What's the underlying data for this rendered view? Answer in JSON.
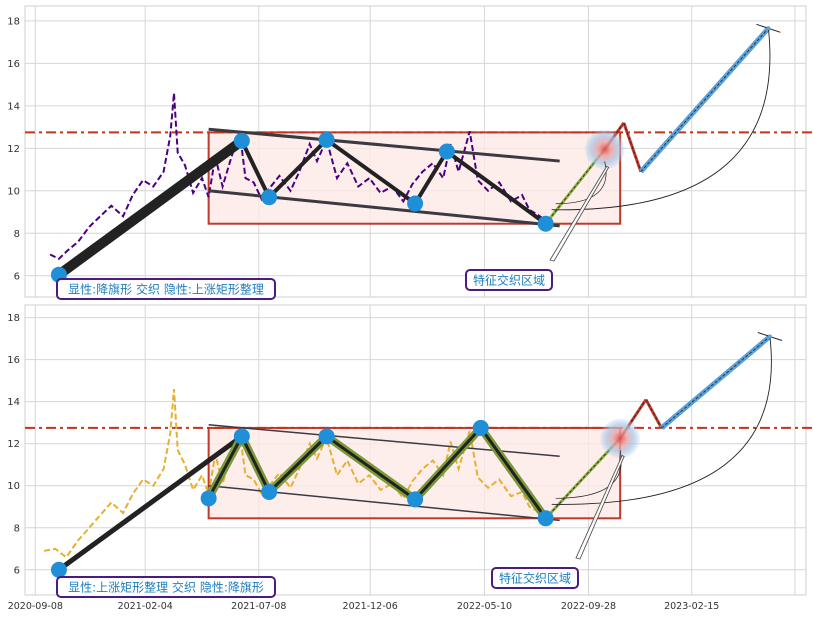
{
  "chart_data": [
    {
      "type": "line",
      "ylim": [
        5,
        18.7
      ],
      "yticks": [
        6,
        8,
        10,
        12,
        14,
        16,
        18
      ],
      "xlim": [
        "2020-08-25",
        "2023-07-20"
      ],
      "grid": true,
      "price_color": "#4b0082",
      "resistance_level": 12.75,
      "annotation": "显性:降旗形 交织 隐性:上涨矩形整理",
      "feature_label": "特征交织区域",
      "price_series": {
        "x": [
          "2020-09-28",
          "2020-10-10",
          "2020-10-22",
          "2020-11-05",
          "2020-11-20",
          "2020-12-05",
          "2020-12-20",
          "2021-01-05",
          "2021-01-18",
          "2021-02-01",
          "2021-02-15",
          "2021-03-01",
          "2021-03-10",
          "2021-03-15",
          "2021-03-20",
          "2021-03-30",
          "2021-04-10",
          "2021-04-22",
          "2021-05-01",
          "2021-05-10",
          "2021-05-20",
          "2021-06-01",
          "2021-06-12",
          "2021-06-20",
          "2021-07-01",
          "2021-07-12",
          "2021-07-22",
          "2021-08-05",
          "2021-08-20",
          "2021-09-01",
          "2021-09-15",
          "2021-09-25",
          "2021-10-08",
          "2021-10-22",
          "2021-11-05",
          "2021-11-20",
          "2021-12-05",
          "2021-12-20",
          "2022-01-05",
          "2022-01-20",
          "2022-02-01",
          "2022-02-15",
          "2022-03-01",
          "2022-03-15",
          "2022-03-25",
          "2022-04-05",
          "2022-04-20",
          "2022-05-01",
          "2022-05-15",
          "2022-05-30",
          "2022-06-15",
          "2022-06-30",
          "2022-07-10",
          "2022-07-20",
          "2022-08-01"
        ],
        "y": [
          7.0,
          6.8,
          7.2,
          7.6,
          8.3,
          8.8,
          9.3,
          8.8,
          9.8,
          10.5,
          10.2,
          10.9,
          12.6,
          14.6,
          11.8,
          11.2,
          9.9,
          10.6,
          9.7,
          11.6,
          10.2,
          11.6,
          12.8,
          10.6,
          10.4,
          9.6,
          10.1,
          10.7,
          10.0,
          10.9,
          12.2,
          11.4,
          12.4,
          10.6,
          11.3,
          10.2,
          10.6,
          9.9,
          10.2,
          9.5,
          10.3,
          10.9,
          11.3,
          10.6,
          12.2,
          10.9,
          12.8,
          10.5,
          10.0,
          10.4,
          9.5,
          9.8,
          9.1,
          8.9,
          8.6
        ]
      },
      "pivots": {
        "x": [
          "2020-10-10",
          "2021-06-15",
          "2021-07-22",
          "2021-10-08",
          "2022-02-05",
          "2022-03-20",
          "2022-08-01"
        ],
        "y": [
          6.05,
          12.35,
          9.7,
          12.4,
          9.4,
          11.85,
          8.45
        ]
      },
      "channel": {
        "upper": {
          "x": [
            "2021-05-01",
            "2022-08-20"
          ],
          "y": [
            12.9,
            11.4
          ]
        },
        "lower": {
          "x": [
            "2021-05-01",
            "2022-08-20"
          ],
          "y": [
            10.0,
            8.35
          ]
        }
      },
      "rectangle": {
        "x": [
          "2021-05-01",
          "2022-11-10"
        ],
        "y": [
          8.45,
          12.75
        ]
      },
      "projection": {
        "x": [
          "2022-08-01",
          "2022-10-20",
          "2022-11-15",
          "2022-12-08",
          "2023-05-30"
        ],
        "y": [
          8.45,
          11.95,
          13.2,
          10.9,
          17.65
        ]
      },
      "stop_mark": {
        "x": "2023-05-30",
        "y": 17.65
      }
    },
    {
      "type": "line",
      "ylim": [
        4.8,
        18.6
      ],
      "yticks": [
        6,
        8,
        10,
        12,
        14,
        16,
        18
      ],
      "xticks": [
        "2020-09-08",
        "2021-02-04",
        "2021-07-08",
        "2021-12-06",
        "2022-05-10",
        "2022-09-28",
        "2023-02-15"
      ],
      "xlim": [
        "2020-08-25",
        "2023-07-20"
      ],
      "grid": true,
      "price_color": "#e6b030",
      "resistance_level": 12.75,
      "annotation": "显性:上涨矩形整理 交织 隐性:降旗形",
      "feature_label": "特征交织区域",
      "price_series": {
        "x": [
          "2020-09-20",
          "2020-10-05",
          "2020-10-20",
          "2020-11-05",
          "2020-11-20",
          "2020-12-05",
          "2020-12-20",
          "2021-01-05",
          "2021-01-18",
          "2021-02-01",
          "2021-02-15",
          "2021-03-01",
          "2021-03-10",
          "2021-03-15",
          "2021-03-20",
          "2021-03-30",
          "2021-04-10",
          "2021-04-22",
          "2021-05-01",
          "2021-05-10",
          "2021-05-20",
          "2021-06-01",
          "2021-06-12",
          "2021-06-20",
          "2021-07-01",
          "2021-07-12",
          "2021-07-22",
          "2021-08-05",
          "2021-08-20",
          "2021-09-01",
          "2021-09-15",
          "2021-09-25",
          "2021-10-08",
          "2021-10-22",
          "2021-11-05",
          "2021-11-20",
          "2021-12-05",
          "2021-12-20",
          "2022-01-05",
          "2022-01-20",
          "2022-02-01",
          "2022-02-15",
          "2022-03-01",
          "2022-03-15",
          "2022-03-25",
          "2022-04-05",
          "2022-04-20",
          "2022-05-01",
          "2022-05-15",
          "2022-05-30",
          "2022-06-15",
          "2022-06-30",
          "2022-07-10",
          "2022-07-20",
          "2022-08-01"
        ],
        "y": [
          6.9,
          7.0,
          6.6,
          7.4,
          8.0,
          8.6,
          9.2,
          8.7,
          9.6,
          10.3,
          10.0,
          10.8,
          12.5,
          14.6,
          11.7,
          11.0,
          9.8,
          10.5,
          9.6,
          11.5,
          10.1,
          11.6,
          12.6,
          10.5,
          10.3,
          9.6,
          10.0,
          10.6,
          9.9,
          10.8,
          12.0,
          11.3,
          12.3,
          10.5,
          11.2,
          10.1,
          10.5,
          9.8,
          10.1,
          9.4,
          10.2,
          10.8,
          11.2,
          10.5,
          12.1,
          10.8,
          12.6,
          10.4,
          9.9,
          10.3,
          9.5,
          9.7,
          9.0,
          8.8,
          8.5
        ]
      },
      "pivots": {
        "x": [
          "2020-10-10",
          "2021-05-01",
          "2021-06-15",
          "2021-07-22",
          "2021-10-08",
          "2022-02-05",
          "2022-05-05",
          "2022-08-01"
        ],
        "y": [
          6.0,
          9.4,
          12.35,
          9.7,
          12.35,
          9.35,
          12.75,
          8.45
        ]
      },
      "channel": {
        "upper": {
          "x": [
            "2021-05-01",
            "2022-08-20"
          ],
          "y": [
            12.9,
            11.4
          ]
        },
        "lower": {
          "x": [
            "2021-05-01",
            "2022-08-20"
          ],
          "y": [
            10.0,
            8.35
          ]
        }
      },
      "rectangle": {
        "x": [
          "2021-05-01",
          "2022-11-10"
        ],
        "y": [
          8.45,
          12.75
        ]
      },
      "projection": {
        "x": [
          "2022-08-01",
          "2022-11-10",
          "2022-12-15",
          "2023-01-05",
          "2023-06-01"
        ],
        "y": [
          8.45,
          12.25,
          14.1,
          12.75,
          17.1
        ]
      },
      "stop_mark": {
        "x": "2023-06-01",
        "y": 17.1
      }
    }
  ]
}
